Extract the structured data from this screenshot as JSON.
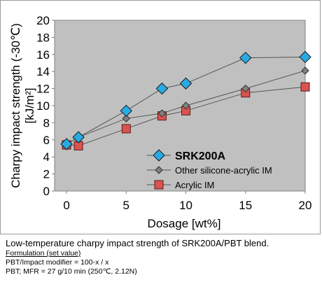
{
  "chart_data": {
    "type": "line",
    "title": "",
    "xlabel": "Dosage [wt%]",
    "ylabel": "Charpy impact strength (-30℃) [kJ/m²]",
    "xlim": [
      -1,
      20
    ],
    "ylim": [
      0,
      20
    ],
    "xticks": [
      0,
      5,
      10,
      15,
      20
    ],
    "yticks": [
      0,
      2,
      4,
      6,
      8,
      10,
      12,
      14,
      16,
      18,
      20
    ],
    "grid": false,
    "legend_position": "lower-center",
    "plot_background": "#c0c0c0",
    "series": [
      {
        "name": "SRK200A",
        "marker": "diamond-large",
        "color": "#29aae2",
        "x": [
          0,
          1,
          5,
          8,
          10,
          15,
          20
        ],
        "y": [
          5.5,
          6.3,
          9.4,
          12.0,
          12.6,
          15.6,
          15.7
        ]
      },
      {
        "name": "Other silicone-acrylic IM",
        "marker": "diamond-small",
        "color": "#808080",
        "x": [
          0,
          1,
          5,
          8,
          10,
          15,
          20
        ],
        "y": [
          5.5,
          6.3,
          8.5,
          9.1,
          10.0,
          12.0,
          14.1
        ]
      },
      {
        "name": "Acrylic IM",
        "marker": "square",
        "color": "#d9534f",
        "x": [
          0,
          1,
          5,
          8,
          10,
          15,
          20
        ],
        "y": [
          5.4,
          5.3,
          7.3,
          8.8,
          9.4,
          11.5,
          12.2
        ]
      }
    ]
  },
  "caption": {
    "title": "Low-temperature charpy impact strength of SRK200A/PBT blend.",
    "formulation_heading": "Formulation (set value)",
    "line1": "PBT/Impact modifier = 100-x / x",
    "line2": "PBT; MFR = 27 g/10 min (250℃, 2.12N)"
  }
}
